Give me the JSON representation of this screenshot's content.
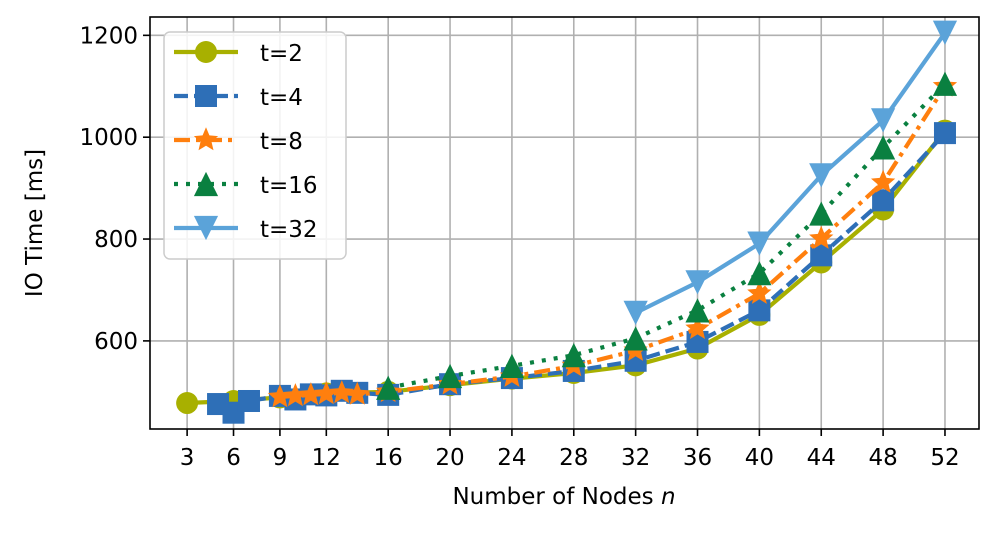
{
  "chart_data": {
    "type": "line",
    "title": "",
    "xlabel": "Number of Nodes",
    "xlabel_italic": "n",
    "ylabel": "IO Time [ms]",
    "x_ticks": [
      3,
      6,
      9,
      12,
      16,
      20,
      24,
      28,
      32,
      36,
      40,
      44,
      48,
      52
    ],
    "y_ticks": [
      600,
      800,
      1000,
      1200
    ],
    "xlim": [
      0.6,
      54.2
    ],
    "ylim": [
      427,
      1236
    ],
    "grid": true,
    "legend_position": "upper left",
    "series": [
      {
        "name": "t=2",
        "color": "#a8b000",
        "marker": "circle",
        "linestyle": "solid",
        "x": [
          3,
          6,
          9,
          12,
          16,
          20,
          24,
          28,
          32,
          36,
          40,
          44,
          48,
          52
        ],
        "values": [
          478,
          482,
          489,
          497,
          500,
          513,
          526,
          537,
          552,
          585,
          651,
          754,
          858,
          1013
        ]
      },
      {
        "name": "t=4",
        "color": "#2e6fb7",
        "marker": "square",
        "linestyle": "dashed",
        "x": [
          5,
          6,
          7,
          9,
          10,
          11,
          12,
          13,
          14,
          16,
          20,
          24,
          28,
          32,
          36,
          40,
          44,
          48,
          52
        ],
        "values": [
          476,
          459,
          482,
          492,
          485,
          495,
          493,
          502,
          498,
          494,
          515,
          527,
          541,
          561,
          598,
          660,
          768,
          876,
          1008
        ]
      },
      {
        "name": "t=8",
        "color": "#ff7f0e",
        "marker": "star",
        "linestyle": "dashdot",
        "x": [
          9,
          10,
          11,
          12,
          13,
          14,
          16,
          20,
          24,
          28,
          32,
          36,
          40,
          44,
          48,
          52
        ],
        "values": [
          490,
          492,
          494,
          496,
          498,
          495,
          500,
          515,
          530,
          551,
          581,
          624,
          693,
          801,
          911,
          1100
        ]
      },
      {
        "name": "t=16",
        "color": "#0a8040",
        "marker": "triangle-up",
        "linestyle": "dotted",
        "x": [
          16,
          20,
          24,
          28,
          32,
          36,
          40,
          44,
          48,
          52
        ],
        "values": [
          508,
          531,
          551,
          572,
          605,
          660,
          733,
          850,
          980,
          1105
        ]
      },
      {
        "name": "t=32",
        "color": "#5ba3d9",
        "marker": "triangle-down",
        "linestyle": "solid",
        "x": [
          32,
          36,
          40,
          44,
          48,
          52
        ],
        "values": [
          655,
          715,
          791,
          925,
          1033,
          1205
        ]
      }
    ]
  },
  "legend": {
    "items": [
      "t=2",
      "t=4",
      "t=8",
      "t=16",
      "t=32"
    ]
  }
}
